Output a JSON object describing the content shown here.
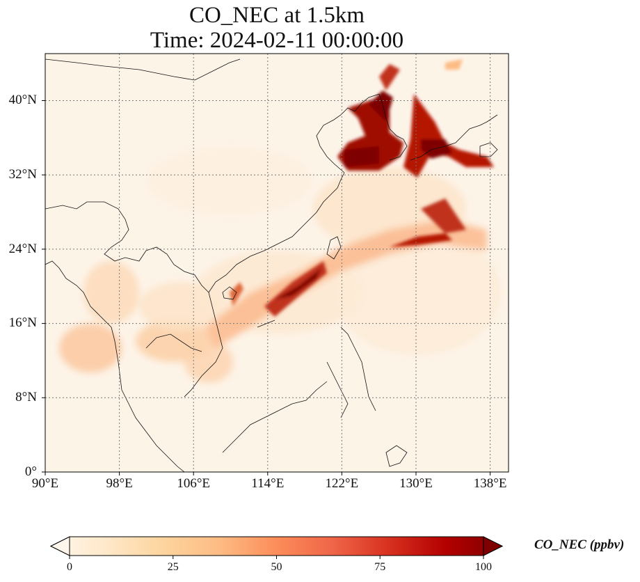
{
  "title": {
    "line1": "CO_NEC at 1.5km",
    "line2": "Time: 2024-02-11 00:00:00"
  },
  "map": {
    "projection": "PlateCarree",
    "lon_range": [
      90,
      140
    ],
    "lat_range": [
      0,
      44
    ],
    "gridlines": "dotted",
    "lon_ticks": [
      "90°E",
      "98°E",
      "106°E",
      "114°E",
      "122°E",
      "130°E",
      "138°E"
    ],
    "lat_ticks": [
      "0°",
      "8°N",
      "16°N",
      "24°N",
      "32°N",
      "40°N"
    ]
  },
  "colorbar": {
    "label": "CO_NEC (ppbv)",
    "ticks": [
      "0",
      "25",
      "50",
      "75",
      "100"
    ],
    "range": [
      0,
      100
    ],
    "extend": "both",
    "colormap": "OrRd",
    "colors": [
      "#fff7ec",
      "#fee8c8",
      "#fdd49e",
      "#fdbb84",
      "#fc8d59",
      "#ef6548",
      "#d7301f",
      "#b30000",
      "#7f0000"
    ]
  }
}
